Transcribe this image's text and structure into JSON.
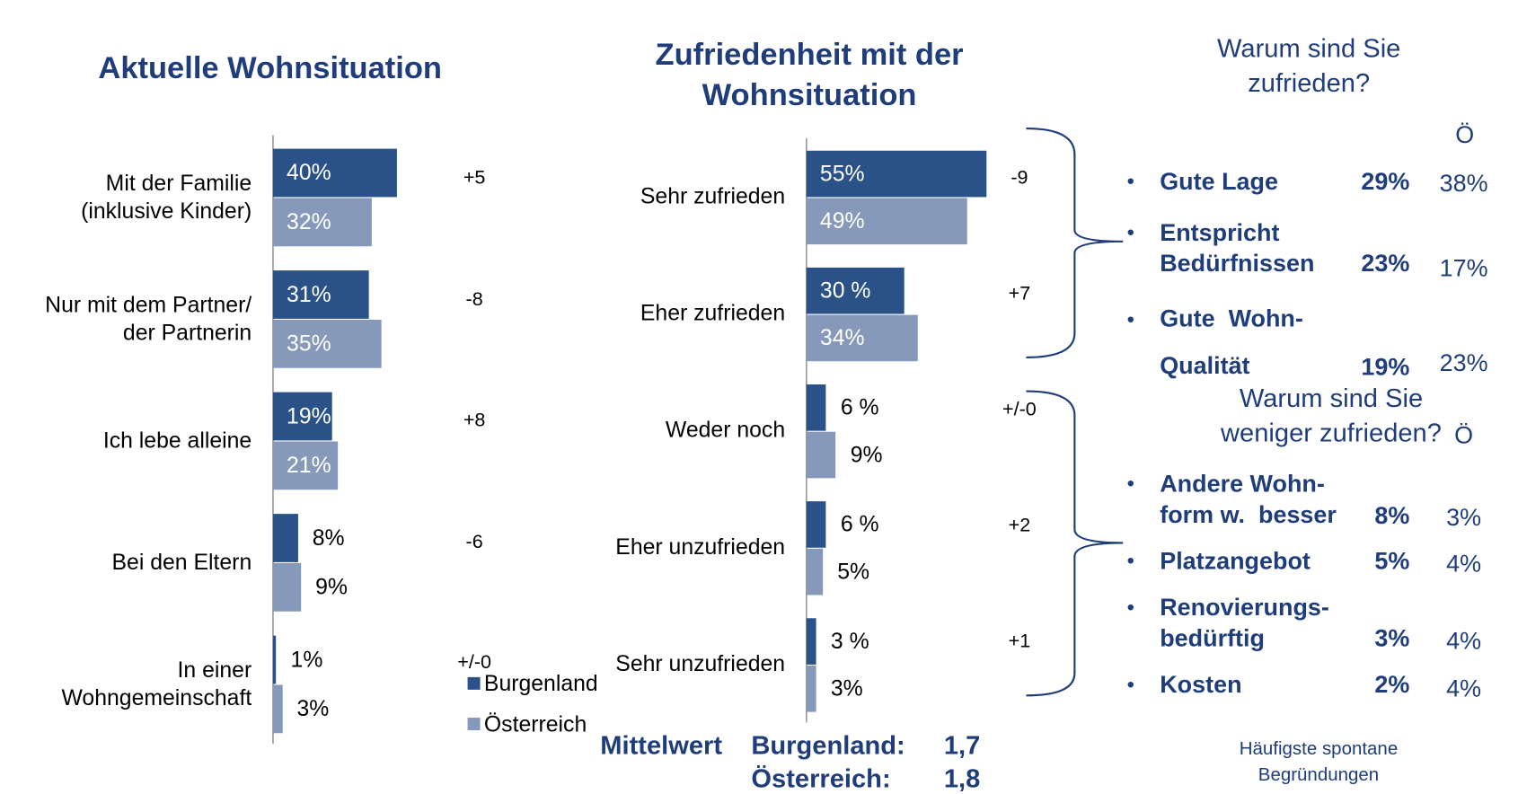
{
  "chart_data": [
    {
      "type": "bar",
      "orientation": "horizontal",
      "title": "Aktuelle Wohnsituation",
      "categories": [
        "Mit der Familie\n(inklusive Kinder)",
        "Nur mit dem Partner/\nder Partnerin",
        "Ich lebe alleine",
        "Bei den Eltern",
        "In einer\nWohngemeinschaft"
      ],
      "series": [
        {
          "name": "Burgenland",
          "color": "#2b5288",
          "values": [
            40,
            31,
            19,
            8,
            1
          ],
          "value_labels": [
            "40%",
            "31%",
            "19%",
            "8%",
            "1%"
          ]
        },
        {
          "name": "Österreich",
          "color": "#8799bb",
          "values": [
            32,
            35,
            21,
            9,
            3
          ],
          "value_labels": [
            "32%",
            "35%",
            "21%",
            "9%",
            "3%"
          ]
        }
      ],
      "differences": [
        "+5",
        "-8",
        "+8",
        "-6",
        "+/-0"
      ]
    },
    {
      "type": "bar",
      "orientation": "horizontal",
      "title": "Zufriedenheit mit der\nWohnsituation",
      "categories": [
        "Sehr zufrieden",
        "Eher zufrieden",
        "Weder noch",
        "Eher unzufrieden",
        "Sehr unzufrieden"
      ],
      "series": [
        {
          "color": "#2b5288",
          "values": [
            55,
            30,
            6,
            6,
            3
          ],
          "value_labels": [
            "55%",
            "30 %",
            "6 %",
            "6 %",
            "3 %"
          ]
        },
        {
          "color": "#8799bb",
          "values": [
            49,
            34,
            9,
            5,
            3
          ],
          "value_labels": [
            "49%",
            "34%",
            "9%",
            "5%",
            "3%"
          ]
        }
      ],
      "differences": [
        "-9",
        "+7",
        "+/-0",
        "+2",
        "+1"
      ],
      "mean": {
        "label": "Mittelwert",
        "rows": [
          {
            "name": "Burgenland:",
            "value": "1,7"
          },
          {
            "name": "Österreich:",
            "value": "1,8"
          }
        ]
      }
    }
  ],
  "reasons": [
    {
      "heading": "Warum sind Sie\nzufrieden?",
      "column_label": "Ö",
      "items": [
        {
          "label": "Gute Lage",
          "burgenland": "29%",
          "oesterreich": "38%"
        },
        {
          "label": "Entspricht\nBedürfnissen",
          "burgenland": "23%",
          "oesterreich": "17%"
        },
        {
          "label": "Gute  Wohn-\nQualität",
          "burgenland": "19%",
          "oesterreich": "23%"
        }
      ]
    },
    {
      "heading": "Warum sind Sie\nweniger zufrieden?",
      "column_label": "Ö",
      "items": [
        {
          "label": "Andere Wohn-\nform w.  besser",
          "burgenland": "8%",
          "oesterreich": "3%"
        },
        {
          "label": "Platzangebot",
          "burgenland": "5%",
          "oesterreich": "4%"
        },
        {
          "label": "Renovierungs-\nbedürftig",
          "burgenland": "3%",
          "oesterreich": "4%"
        },
        {
          "label": "Kosten",
          "burgenland": "2%",
          "oesterreich": "4%"
        }
      ]
    }
  ],
  "footnote": "Häufigste spontane\nBegründungen"
}
